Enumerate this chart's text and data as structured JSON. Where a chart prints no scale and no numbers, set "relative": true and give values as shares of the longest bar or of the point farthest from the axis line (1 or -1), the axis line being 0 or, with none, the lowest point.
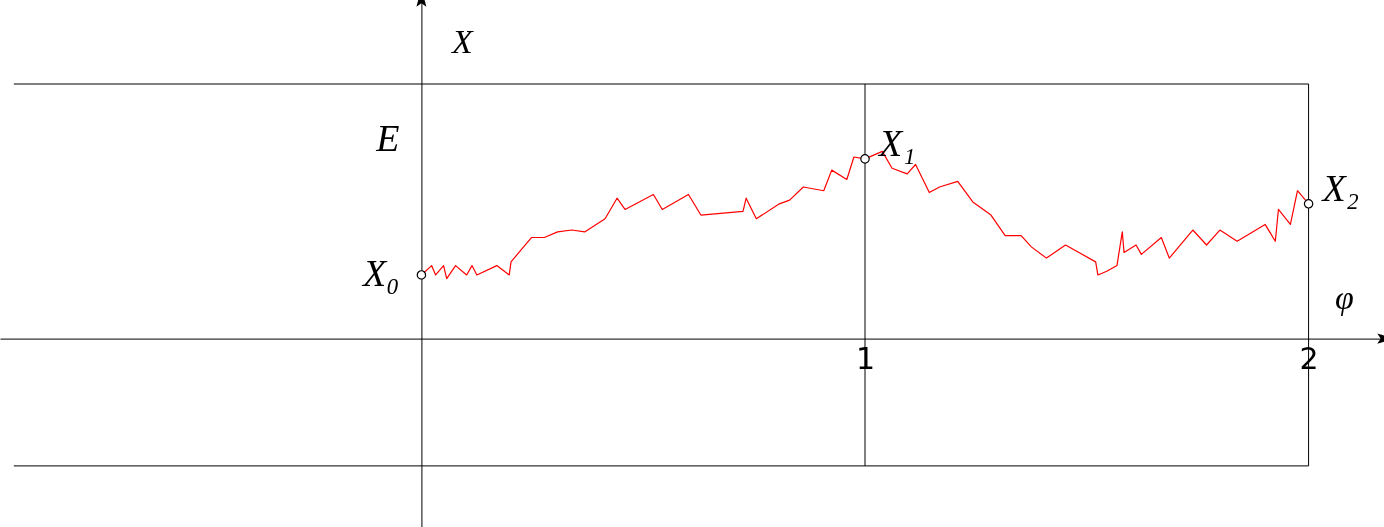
{
  "chart_data": {
    "type": "line",
    "relative": true,
    "xlabel": "φ",
    "ylabel": "X",
    "xlim": [
      -0.95,
      2.17
    ],
    "xticks": [
      1,
      2
    ],
    "grid": false,
    "series": [
      {
        "color": "#ff0000",
        "marker": "none",
        "x": [
          0,
          0.023,
          0.032,
          0.05,
          0.057,
          0.077,
          0.102,
          0.114,
          0.125,
          0.17,
          0.198,
          0.202,
          0.248,
          0.277,
          0.307,
          0.339,
          0.368,
          0.414,
          0.441,
          0.459,
          0.523,
          0.543,
          0.602,
          0.63,
          0.725,
          0.732,
          0.755,
          0.807,
          0.83,
          0.861,
          0.907,
          0.925,
          0.959,
          0.975,
          1,
          1.039,
          1.061,
          1.095,
          1.114,
          1.145,
          1.168,
          1.209,
          1.243,
          1.284,
          1.316,
          1.352,
          1.375,
          1.409,
          1.452,
          1.52,
          1.525,
          1.545,
          1.568,
          1.58,
          1.584,
          1.611,
          1.623,
          1.668,
          1.686,
          1.739,
          1.77,
          1.8,
          1.839,
          1.902,
          1.925,
          1.932,
          1.959,
          1.975,
          2
        ],
        "values": [
          0.34,
          0.39,
          0.34,
          0.39,
          0.32,
          0.39,
          0.34,
          0.39,
          0.34,
          0.39,
          0.34,
          0.41,
          0.54,
          0.54,
          0.57,
          0.58,
          0.57,
          0.64,
          0.75,
          0.69,
          0.77,
          0.69,
          0.77,
          0.66,
          0.68,
          0.75,
          0.64,
          0.72,
          0.74,
          0.81,
          0.79,
          0.9,
          0.85,
          0.97,
          0.96,
          1.0,
          0.91,
          0.88,
          0.93,
          0.78,
          0.81,
          0.84,
          0.73,
          0.66,
          0.55,
          0.55,
          0.49,
          0.43,
          0.5,
          0.41,
          0.34,
          0.36,
          0.39,
          0.57,
          0.46,
          0.5,
          0.45,
          0.54,
          0.43,
          0.58,
          0.5,
          0.58,
          0.52,
          0.61,
          0.52,
          0.69,
          0.61,
          0.79,
          0.72
        ]
      },
      {
        "type": "scatter",
        "color": "#000000",
        "marker": "circle",
        "x": [
          0,
          1,
          2
        ],
        "values": [
          0.34,
          0.96,
          0.72
        ]
      }
    ],
    "ref_lines": [
      {
        "axis": "x",
        "value": 1
      },
      {
        "axis": "x",
        "value": 2
      },
      {
        "axis": "y",
        "value": 1.36
      },
      {
        "axis": "y",
        "value": -0.68
      }
    ],
    "annotations": [
      "E",
      {
        "text": "X₀",
        "x": 0,
        "y": 0.34
      },
      {
        "text": "X₁",
        "x": 1,
        "y": 0.96
      },
      {
        "text": "X₂",
        "x": 2,
        "y": 0.72
      }
    ]
  }
}
